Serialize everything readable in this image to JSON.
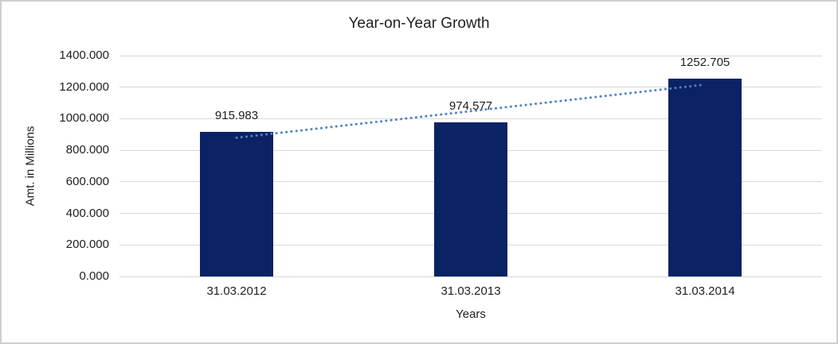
{
  "chart_data": {
    "type": "bar",
    "title": "Year-on-Year Growth",
    "xlabel": "Years",
    "ylabel": "Amt. in Millions",
    "categories": [
      "31.03.2012",
      "31.03.2013",
      "31.03.2014"
    ],
    "values": [
      915.983,
      974.577,
      1252.705
    ],
    "data_labels": [
      "915.983",
      "974.577",
      "1252.705"
    ],
    "y_ticks": [
      "0.000",
      "200.000",
      "400.000",
      "600.000",
      "800.000",
      "1000.000",
      "1200.000",
      "1400.000"
    ],
    "ylim": [
      0,
      1400
    ],
    "grid": true,
    "legend": "none",
    "bar_color": "#0B2265",
    "gridline_color": "#D9D9D9",
    "axis_line_color": "#D6D6D6",
    "text_color": "#1F1F1F",
    "trendline": {
      "type": "linear",
      "style": "dotted",
      "color": "#4E82C4"
    }
  }
}
